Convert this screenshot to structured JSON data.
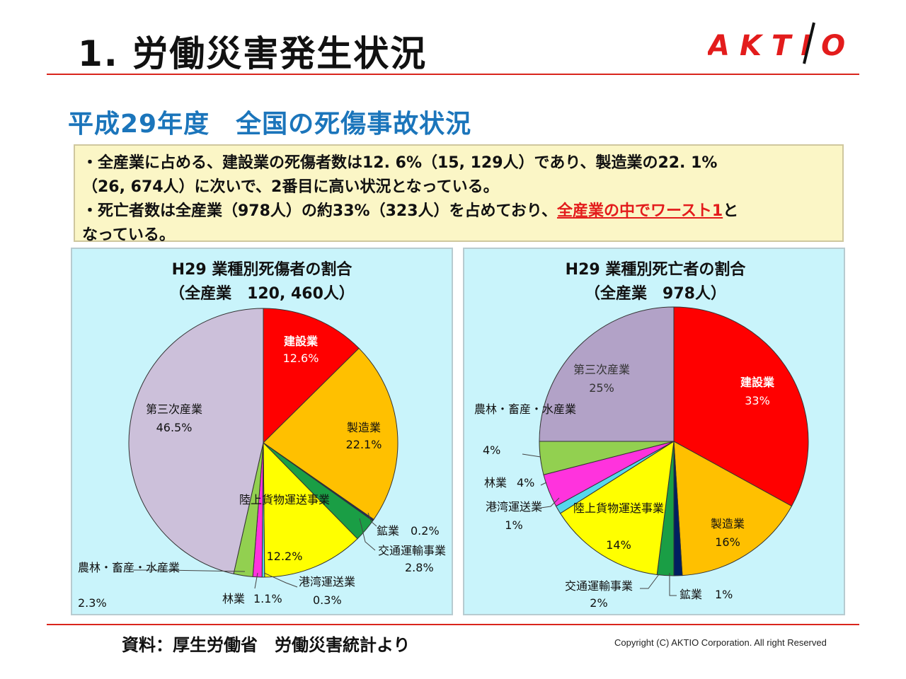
{
  "header": {
    "title": "1.  労働災害発生状況",
    "brand": "AKTIO"
  },
  "subtitle": "平成29年度　全国の死傷事故状況",
  "summary": {
    "line1": "・全産業に占める、建設業の死傷者数は12. 6%（15, 129人）であり、製造業の22. 1%",
    "line2": "（26, 674人）に次いで、2番目に高い状況となっている。",
    "line3_pre": "・死亡者数は全産業（978人）の約33%（323人）を占めており、",
    "line3_highlight": "全産業の中でワースト1",
    "line3_post": "と",
    "line4": "なっている。"
  },
  "chart_data": [
    {
      "type": "pie",
      "title": "H29 業種別死傷者の割合",
      "subtitle": "（全産業　120, 460人）",
      "slices": [
        {
          "label": "建設業",
          "value": 12.6,
          "text": "12.6%",
          "color": "#ff0000"
        },
        {
          "label": "製造業",
          "value": 22.1,
          "text": "22.1%",
          "color": "#ffc000"
        },
        {
          "label": "鉱業",
          "value": 0.2,
          "text": "0.2%",
          "color": "#1f2a60"
        },
        {
          "label": "交通運輸事業",
          "value": 2.8,
          "text": "2.8%",
          "color": "#1a9e45"
        },
        {
          "label": "陸上貨物運送事業",
          "value": 12.2,
          "text": "12.2%",
          "color": "#ffff00"
        },
        {
          "label": "港湾運送業",
          "value": 0.3,
          "text": "0.3%",
          "color": "#55d8ec"
        },
        {
          "label": "林業",
          "value": 1.1,
          "text": "1.1%",
          "color": "#ff33dd"
        },
        {
          "label": "農林・畜産・水産業",
          "value": 2.3,
          "text": "2.3%",
          "color": "#92d050"
        },
        {
          "label": "第三次産業",
          "value": 46.5,
          "text": "46.5%",
          "color": "#ccc0da"
        }
      ]
    },
    {
      "type": "pie",
      "title": "H29 業種別死亡者の割合",
      "subtitle": "（全産業　978人）",
      "slices": [
        {
          "label": "建設業",
          "value": 33,
          "text": "33%",
          "color": "#ff0000"
        },
        {
          "label": "製造業",
          "value": 16,
          "text": "16%",
          "color": "#ffc000"
        },
        {
          "label": "鉱業",
          "value": 1,
          "text": "1%",
          "color": "#002060"
        },
        {
          "label": "交通運輸事業",
          "value": 2,
          "text": "2%",
          "color": "#1a9e45"
        },
        {
          "label": "陸上貨物運送事業",
          "value": 14,
          "text": "14%",
          "color": "#ffff00"
        },
        {
          "label": "港湾運送業",
          "value": 1,
          "text": "1%",
          "color": "#55d8ec"
        },
        {
          "label": "林業",
          "value": 4,
          "text": "4%",
          "color": "#ff33dd"
        },
        {
          "label": "農林・畜産・水産業",
          "value": 4,
          "text": "4%",
          "color": "#92d050"
        },
        {
          "label": "第三次産業",
          "value": 25,
          "text": "25%",
          "color": "#b2a2c7"
        }
      ]
    }
  ],
  "footer": {
    "source": "資料：厚生労働省　労働災害統計より",
    "copyright": "Copyright (C)  AKTIO Corporation. All right Reserved"
  },
  "colors": {
    "accent_red": "#d9251d",
    "subtitle_blue": "#1b75bb",
    "panel_bg": "#c9f4fb",
    "summary_bg": "#fbf6c6"
  }
}
